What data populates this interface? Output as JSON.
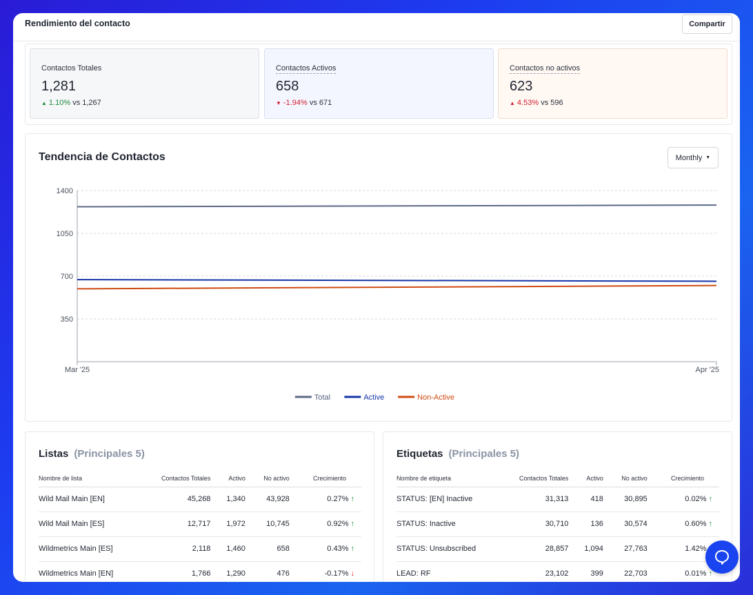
{
  "header": {
    "title": "Rendimiento del contacto",
    "share_label": "Compartir"
  },
  "kpis": [
    {
      "label": "Contactos Totales",
      "value": "1,281",
      "delta": "1.10%",
      "vs": "vs 1,267",
      "trend": "up",
      "color": "#1a8a3a"
    },
    {
      "label": "Contactos Activos",
      "value": "658",
      "delta": "-1.94%",
      "vs": "vs 671",
      "trend": "down",
      "color": "#d21a2c"
    },
    {
      "label": "Contactos no activos",
      "value": "623",
      "delta": "4.53%",
      "vs": "vs 596",
      "trend": "up",
      "color": "#d21a2c"
    }
  ],
  "trend": {
    "title": "Tendencia de Contactos",
    "period_select": "Monthly"
  },
  "chart_data": {
    "type": "line",
    "x": [
      "Mar '25",
      "Apr '25"
    ],
    "ylim": [
      0,
      1400
    ],
    "yticks": [
      350,
      700,
      1050,
      1400
    ],
    "grid": true,
    "legend_position": "bottom-center",
    "series": [
      {
        "name": "Total",
        "color": "#5b6785",
        "values": [
          1267,
          1281
        ]
      },
      {
        "name": "Active",
        "color": "#1533a8",
        "values": [
          671,
          658
        ]
      },
      {
        "name": "Non-Active",
        "color": "#cf4a12",
        "values": [
          596,
          623
        ]
      }
    ]
  },
  "lists": {
    "title": "Listas",
    "subtitle": "(Principales 5)",
    "headers": [
      "Nombre de lista",
      "Contactos Totales",
      "Activo",
      "No activo",
      "Crecimiento"
    ],
    "rows": [
      {
        "name": "Wild Mail Main [EN]",
        "total": "45,268",
        "active": "1,340",
        "inactive": "43,928",
        "growth": "0.27%",
        "dir": "up"
      },
      {
        "name": "Wild Mail Main [ES]",
        "total": "12,717",
        "active": "1,972",
        "inactive": "10,745",
        "growth": "0.92%",
        "dir": "up"
      },
      {
        "name": "Wildmetrics Main [ES]",
        "total": "2,118",
        "active": "1,460",
        "inactive": "658",
        "growth": "0.43%",
        "dir": "up"
      },
      {
        "name": "Wildmetrics Main [EN]",
        "total": "1,766",
        "active": "1,290",
        "inactive": "476",
        "growth": "-0.17%",
        "dir": "down"
      }
    ]
  },
  "tags": {
    "title": "Etiquetas",
    "subtitle": "(Principales 5)",
    "headers": [
      "Nombre de etiqueta",
      "Contactos Totales",
      "Activo",
      "No activo",
      "Crecimiento"
    ],
    "rows": [
      {
        "name": "STATUS: [EN] Inactive",
        "total": "31,313",
        "active": "418",
        "inactive": "30,895",
        "growth": "0.02%",
        "dir": "up"
      },
      {
        "name": "STATUS: Inactive",
        "total": "30,710",
        "active": "136",
        "inactive": "30,574",
        "growth": "0.60%",
        "dir": "up"
      },
      {
        "name": "STATUS: Unsubscribed",
        "total": "28,857",
        "active": "1,094",
        "inactive": "27,763",
        "growth": "1.42%",
        "dir": "up"
      },
      {
        "name": "LEAD: RF",
        "total": "23,102",
        "active": "399",
        "inactive": "22,703",
        "growth": "0.01%",
        "dir": "up"
      }
    ]
  },
  "icons": {
    "help": "chat-support-icon",
    "up": "arrow-up-icon",
    "down": "arrow-down-icon",
    "caret": "caret-down-icon"
  }
}
